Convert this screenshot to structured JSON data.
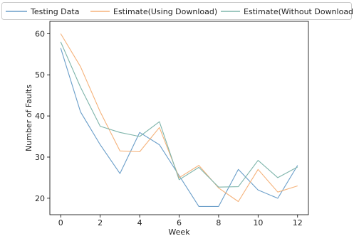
{
  "chart_data": {
    "type": "line",
    "xlabel": "Week",
    "ylabel": "Number of Faults",
    "xlim": [
      -0.55,
      12.55
    ],
    "ylim": [
      16,
      63
    ],
    "xticks": [
      "0",
      "2",
      "4",
      "6",
      "8",
      "10",
      "12"
    ],
    "yticks": [
      "20",
      "30",
      "40",
      "50",
      "60"
    ],
    "grid": false,
    "legend_position": "top",
    "x": [
      0,
      1,
      2,
      3,
      4,
      5,
      6,
      7,
      8,
      9,
      10,
      11,
      12
    ],
    "series": [
      {
        "name": "Testing Data",
        "color": "#6a9ec9",
        "values": [
          56.5,
          41,
          33,
          26,
          36,
          33,
          25.5,
          18,
          18,
          27,
          22,
          20,
          28
        ]
      },
      {
        "name": "Estimate(Using Download)",
        "color": "#f5b27a",
        "values": [
          60,
          52,
          41,
          31.5,
          31.3,
          37.2,
          25,
          28,
          22.5,
          19.2,
          27,
          21.5,
          23
        ]
      },
      {
        "name": "Estimate(Without Download)",
        "color": "#7fb5ab",
        "values": [
          58,
          47,
          37.5,
          36,
          35,
          38.6,
          24.5,
          27.5,
          22.7,
          22.8,
          29.2,
          25,
          27.6
        ]
      }
    ]
  }
}
